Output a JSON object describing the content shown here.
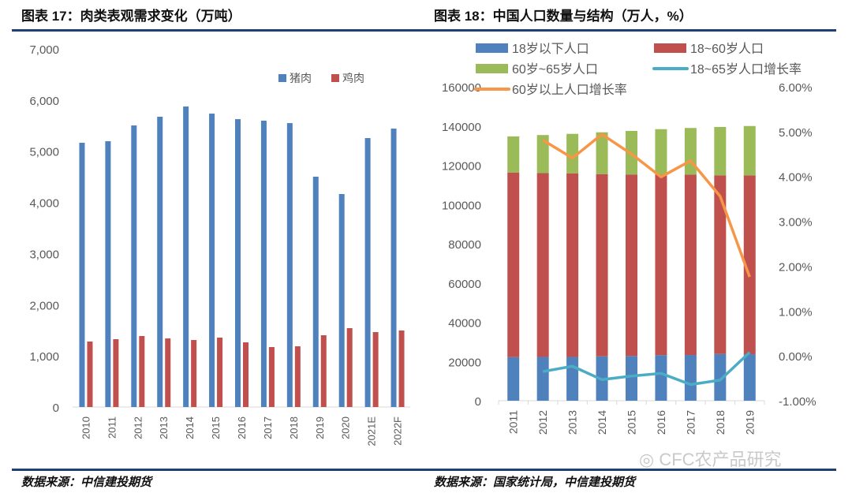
{
  "left": {
    "title": "图表 17：肉类表观需求变化（万吨）",
    "source": "数据来源：中信建投期货"
  },
  "right": {
    "title": "图表 18：中国人口数量与结构（万人，%）",
    "source": "数据来源：国家统计局，中信建投期货",
    "watermark": "CFC农产品研究"
  },
  "chart_data": [
    {
      "type": "bar",
      "title": "图表 17：肉类表观需求变化（万吨）",
      "categories": [
        "2010",
        "2011",
        "2012",
        "2013",
        "2014",
        "2015",
        "2016",
        "2017",
        "2018",
        "2019",
        "2020",
        "2021E",
        "2022F"
      ],
      "series": [
        {
          "name": "猪肉",
          "color": "#4f81bd",
          "values": [
            5165,
            5196,
            5504,
            5674,
            5874,
            5735,
            5627,
            5597,
            5550,
            4502,
            4163,
            5257,
            5442
          ]
        },
        {
          "name": "鸡肉",
          "color": "#c0504d",
          "values": [
            1280,
            1326,
            1388,
            1341,
            1310,
            1357,
            1264,
            1172,
            1187,
            1403,
            1542,
            1465,
            1496
          ]
        }
      ],
      "ylim": [
        0,
        7000
      ],
      "yticks": [
        "0",
        "1,000",
        "2,000",
        "3,000",
        "4,000",
        "5,000",
        "6,000",
        "7,000"
      ],
      "grid": false,
      "legend": "top-right"
    },
    {
      "type": "bar",
      "stacked": true,
      "title": "图表 18：中国人口数量与结构（万人，%）",
      "categories": [
        "2011",
        "2012",
        "2013",
        "2014",
        "2015",
        "2016",
        "2017",
        "2018",
        "2019"
      ],
      "series": [
        {
          "name": "18岁以下人口",
          "color": "#4f81bd",
          "axis": "left",
          "values": [
            22200,
            22300,
            22300,
            22600,
            22800,
            23200,
            23300,
            23800,
            23700
          ]
        },
        {
          "name": "18~60岁人口",
          "color": "#c0504d",
          "axis": "left",
          "values": [
            94100,
            93700,
            93600,
            92900,
            92500,
            92000,
            91900,
            91000,
            91100
          ]
        },
        {
          "name": "60岁~65岁人口",
          "color": "#9bbb59",
          "axis": "left",
          "values": [
            18400,
            19400,
            20100,
            21300,
            22200,
            23200,
            23800,
            24700,
            25200
          ]
        },
        {
          "name": "18~65岁人口增长率",
          "color": "#4bacc6",
          "type": "line",
          "axis": "right",
          "values": [
            null,
            -0.35,
            -0.23,
            -0.53,
            -0.45,
            -0.39,
            -0.64,
            -0.54,
            0.08
          ]
        },
        {
          "name": "60岁以上人口增长率",
          "color": "#f79646",
          "type": "line",
          "axis": "right",
          "values": [
            null,
            4.81,
            4.41,
            4.94,
            4.5,
            3.99,
            4.35,
            3.56,
            1.76
          ]
        }
      ],
      "ylim": [
        0,
        160000
      ],
      "yticks": [
        "0",
        "20000",
        "40000",
        "60000",
        "80000",
        "100000",
        "120000",
        "140000",
        "160000"
      ],
      "y2lim": [
        -1,
        6
      ],
      "y2ticks": [
        "-1.00%",
        "0.00%",
        "1.00%",
        "2.00%",
        "3.00%",
        "4.00%",
        "5.00%",
        "6.00%"
      ],
      "grid": false,
      "legend": "top"
    }
  ]
}
